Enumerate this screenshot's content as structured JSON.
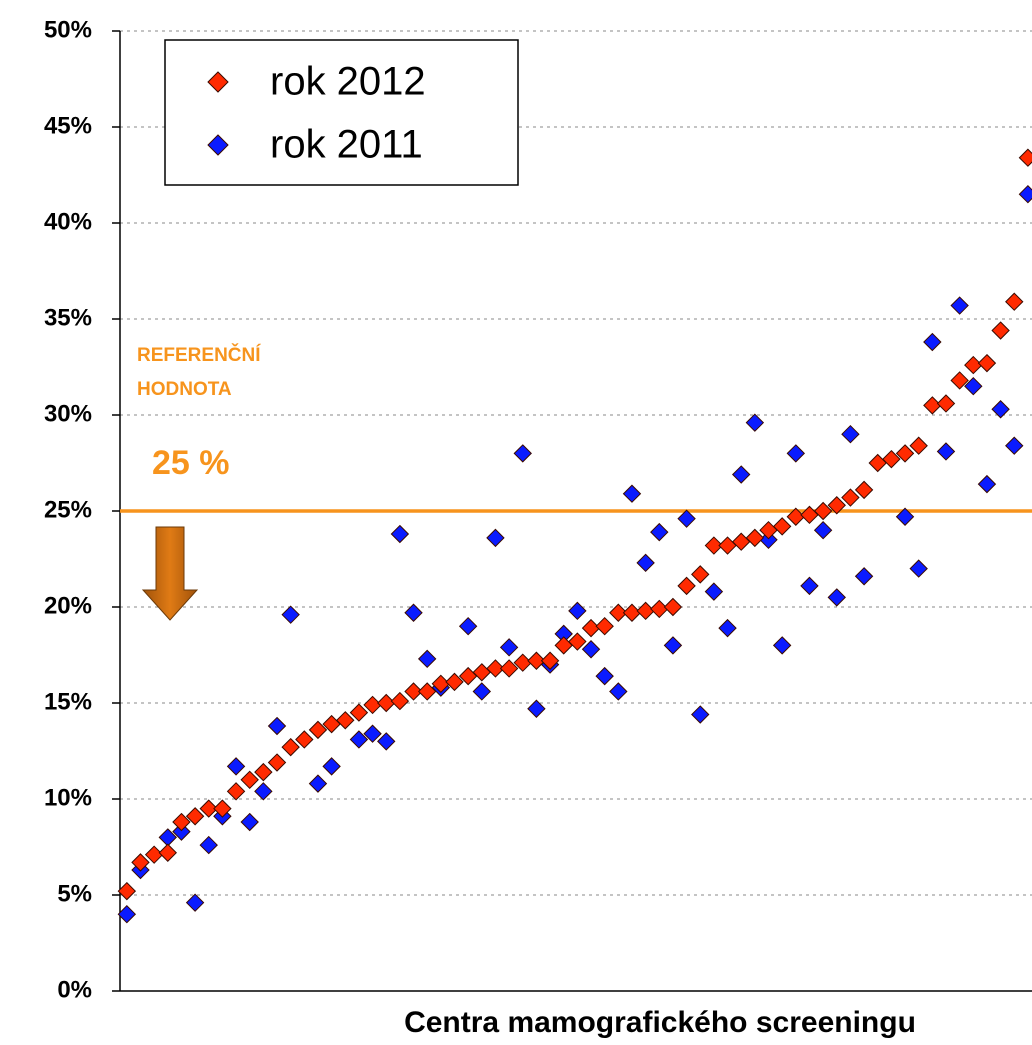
{
  "chart_data": {
    "type": "scatter",
    "x_label": "Centra mamografického screeningu",
    "x": [
      1,
      2,
      3,
      4,
      5,
      6,
      7,
      8,
      9,
      10,
      11,
      12,
      13,
      14,
      15,
      16,
      17,
      18,
      19,
      20,
      21,
      22,
      23,
      24,
      25,
      26,
      27,
      28,
      29,
      30,
      31,
      32,
      33,
      34,
      35,
      36,
      37,
      38,
      39,
      40,
      41,
      42,
      43,
      44,
      45,
      46,
      47,
      48,
      49,
      50,
      51,
      52,
      53,
      54,
      55,
      56,
      57,
      58,
      59,
      60,
      61,
      62,
      63,
      64,
      65,
      66,
      67
    ],
    "xlim": [
      0.5,
      67.3
    ],
    "ylim": [
      0,
      50
    ],
    "yticks": [
      {
        "value": 0,
        "label": "0%"
      },
      {
        "value": 5,
        "label": "5%"
      },
      {
        "value": 10,
        "label": "10%"
      },
      {
        "value": 15,
        "label": "15%"
      },
      {
        "value": 20,
        "label": "20%"
      },
      {
        "value": 25,
        "label": "25%"
      },
      {
        "value": 30,
        "label": "30%"
      },
      {
        "value": 35,
        "label": "35%"
      },
      {
        "value": 40,
        "label": "40%"
      },
      {
        "value": 45,
        "label": "45%"
      },
      {
        "value": 50,
        "label": "50%"
      }
    ],
    "grid": true,
    "legend": "top-left",
    "series": [
      {
        "name": "rok 2012",
        "color": "#ff2a00",
        "values": [
          5.2,
          6.7,
          7.1,
          7.2,
          8.8,
          9.1,
          9.5,
          9.5,
          10.4,
          11.0,
          11.4,
          11.9,
          12.7,
          13.1,
          13.6,
          13.9,
          14.1,
          14.5,
          14.9,
          15.0,
          15.1,
          15.6,
          15.6,
          16.0,
          16.1,
          16.4,
          16.6,
          16.8,
          16.8,
          17.1,
          17.2,
          17.2,
          18.0,
          18.2,
          18.9,
          19.0,
          19.7,
          19.7,
          19.8,
          19.9,
          20.0,
          21.1,
          21.7,
          23.2,
          23.2,
          23.4,
          23.6,
          24.0,
          24.2,
          24.7,
          24.8,
          25.0,
          25.3,
          25.7,
          26.1,
          27.5,
          27.7,
          28.0,
          28.4,
          30.5,
          30.6,
          31.8,
          32.6,
          32.7,
          34.4,
          35.9,
          43.4
        ]
      },
      {
        "name": "rok 2011",
        "color": "#0a1bff",
        "values": [
          4.0,
          6.3,
          null,
          8.0,
          8.3,
          4.6,
          7.6,
          9.1,
          11.7,
          8.8,
          10.4,
          13.8,
          19.6,
          null,
          10.8,
          11.7,
          null,
          13.1,
          13.4,
          13.0,
          23.8,
          19.7,
          17.3,
          15.8,
          null,
          19.0,
          15.6,
          23.6,
          17.9,
          28.0,
          14.7,
          17.0,
          18.6,
          19.8,
          17.8,
          16.4,
          15.6,
          25.9,
          22.3,
          23.9,
          18.0,
          24.6,
          14.4,
          20.8,
          18.9,
          26.9,
          29.6,
          23.5,
          18.0,
          28.0,
          21.1,
          24.0,
          20.5,
          29.0,
          21.6,
          null,
          null,
          24.7,
          22.0,
          33.8,
          28.1,
          35.7,
          31.5,
          26.4,
          30.3,
          28.4,
          41.5
        ]
      }
    ],
    "reference": {
      "value": 25,
      "label": "25 %",
      "title": [
        "REFERENČNÍ",
        "HODNOTA"
      ],
      "color": "#f7941d"
    }
  }
}
